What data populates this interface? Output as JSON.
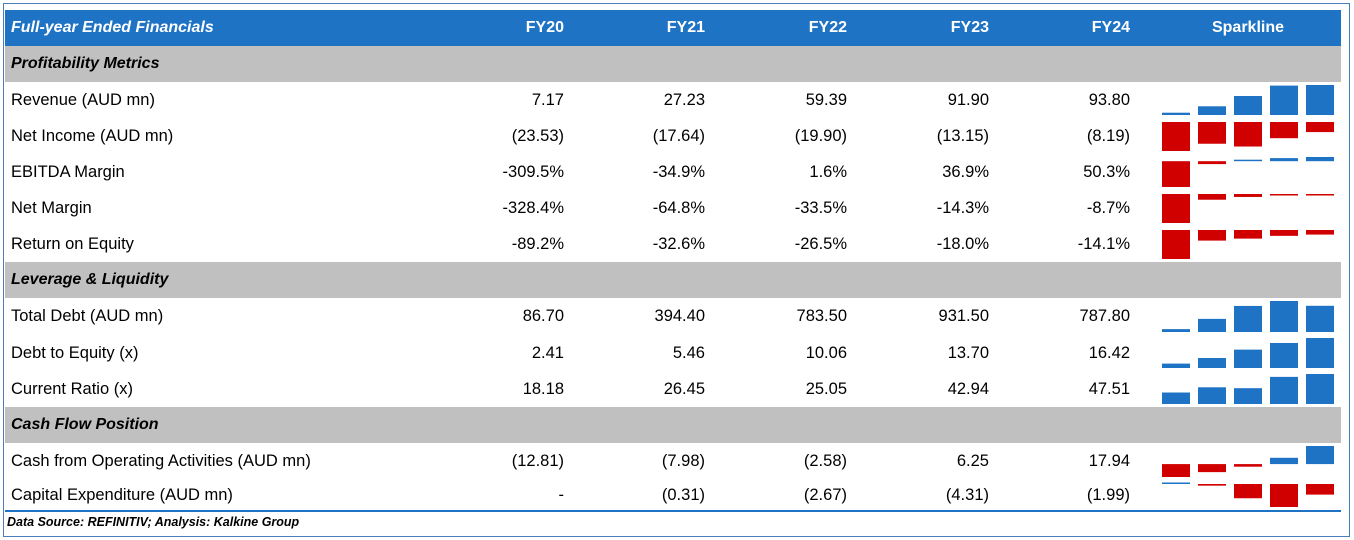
{
  "header": {
    "title": "Full-year Ended Financials",
    "years": [
      "FY20",
      "FY21",
      "FY22",
      "FY23",
      "FY24"
    ],
    "sparkline_label": "Sparkline"
  },
  "sections": [
    {
      "title": "Profitability Metrics",
      "rows": [
        {
          "label": "Revenue (AUD mn)",
          "display": [
            "7.17",
            "27.23",
            "59.39",
            "91.90",
            "93.80"
          ],
          "values": [
            7.17,
            27.23,
            59.39,
            91.9,
            93.8
          ]
        },
        {
          "label": "Net Income (AUD mn)",
          "display": [
            "(23.53)",
            "(17.64)",
            "(19.90)",
            "(13.15)",
            "(8.19)"
          ],
          "values": [
            -23.53,
            -17.64,
            -19.9,
            -13.15,
            -8.19
          ]
        },
        {
          "label": "EBITDA Margin",
          "display": [
            "-309.5%",
            "-34.9%",
            "1.6%",
            "36.9%",
            "50.3%"
          ],
          "values": [
            -309.5,
            -34.9,
            1.6,
            36.9,
            50.3
          ]
        },
        {
          "label": "Net Margin",
          "display": [
            "-328.4%",
            "-64.8%",
            "-33.5%",
            "-14.3%",
            "-8.7%"
          ],
          "values": [
            -328.4,
            -64.8,
            -33.5,
            -14.3,
            -8.7
          ]
        },
        {
          "label": "Return on Equity",
          "display": [
            "-89.2%",
            "-32.6%",
            "-26.5%",
            "-18.0%",
            "-14.1%"
          ],
          "values": [
            -89.2,
            -32.6,
            -26.5,
            -18.0,
            -14.1
          ]
        }
      ]
    },
    {
      "title": "Leverage & Liquidity",
      "rows": [
        {
          "label": "Total Debt (AUD mn)",
          "display": [
            "86.70",
            "394.40",
            "783.50",
            "931.50",
            "787.80"
          ],
          "values": [
            86.7,
            394.4,
            783.5,
            931.5,
            787.8
          ]
        },
        {
          "label": "Debt to Equity (x)",
          "display": [
            "2.41",
            "5.46",
            "10.06",
            "13.70",
            "16.42"
          ],
          "values": [
            2.41,
            5.46,
            10.06,
            13.7,
            16.42
          ]
        },
        {
          "label": "Current Ratio (x)",
          "display": [
            "18.18",
            "26.45",
            "25.05",
            "42.94",
            "47.51"
          ],
          "values": [
            18.18,
            26.45,
            25.05,
            42.94,
            47.51
          ]
        }
      ]
    },
    {
      "title": "Cash Flow Position",
      "rows": [
        {
          "label": "Cash from Operating Activities (AUD mn)",
          "display": [
            "(12.81)",
            "(7.98)",
            "(2.58)",
            "6.25",
            "17.94"
          ],
          "values": [
            -12.81,
            -7.98,
            -2.58,
            6.25,
            17.94
          ]
        },
        {
          "label": "Capital Expenditure (AUD mn)",
          "display": [
            "-",
            "(0.31)",
            "(2.67)",
            "(4.31)",
            "(1.99)"
          ],
          "values": [
            0,
            -0.31,
            -2.67,
            -4.31,
            -1.99
          ]
        }
      ]
    }
  ],
  "footer": {
    "source": "Data Source: REFINITIV; Analysis: Kalkine Group"
  },
  "colors": {
    "header_bg": "#1f73c4",
    "section_bg": "#c0c0c0",
    "positive_bar": "#1f73c4",
    "negative_bar": "#d00000"
  }
}
